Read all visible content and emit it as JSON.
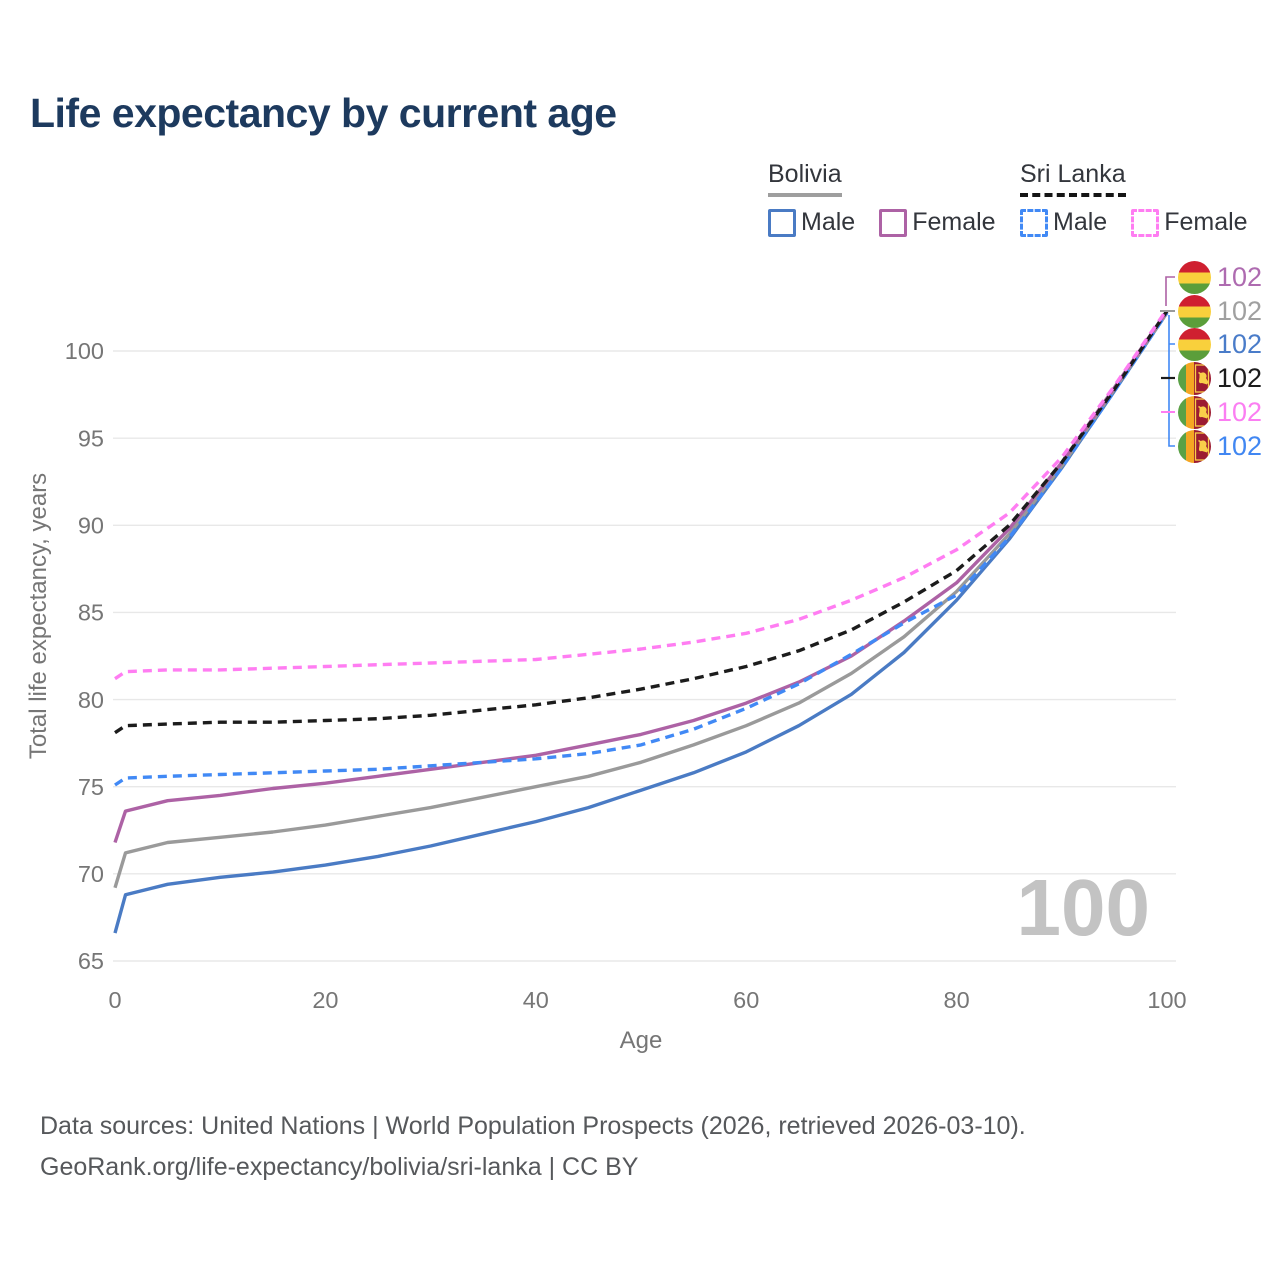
{
  "title": "Life expectancy by current age",
  "legend": {
    "groups": [
      {
        "name": "Bolivia",
        "line_style": "solid",
        "items": [
          {
            "label": "Male",
            "series": "bolivia_male"
          },
          {
            "label": "Female",
            "series": "bolivia_female"
          }
        ]
      },
      {
        "name": "Sri Lanka",
        "line_style": "dashed",
        "items": [
          {
            "label": "Male",
            "series": "srilanka_male"
          },
          {
            "label": "Female",
            "series": "srilanka_female"
          }
        ]
      }
    ]
  },
  "chart_data": {
    "type": "line",
    "title": "Life expectancy by current age",
    "xlabel": "Age",
    "ylabel": "Total life expectancy, years",
    "xlim": [
      0,
      100
    ],
    "ylim": [
      65,
      103
    ],
    "xticks": [
      0,
      20,
      40,
      60,
      80,
      100
    ],
    "yticks": [
      65,
      70,
      75,
      80,
      85,
      90,
      95,
      100
    ],
    "grid": true,
    "legend_position": "top-right",
    "x": [
      0,
      1,
      5,
      10,
      15,
      20,
      25,
      30,
      35,
      40,
      45,
      50,
      55,
      60,
      65,
      70,
      75,
      80,
      85,
      90,
      95,
      100
    ],
    "series": [
      {
        "key": "bolivia_male",
        "name": "Bolivia Male",
        "dash": false,
        "color": "#4a7bc4",
        "values": [
          66.6,
          68.8,
          69.4,
          69.8,
          70.1,
          70.5,
          71.0,
          71.6,
          72.3,
          73.0,
          73.8,
          74.8,
          75.8,
          77.0,
          78.5,
          80.3,
          82.7,
          85.7,
          89.2,
          93.3,
          97.7,
          102.2
        ]
      },
      {
        "key": "bolivia_both",
        "name": "Bolivia Both sexes",
        "dash": false,
        "color": "#9a9a9a",
        "values": [
          69.2,
          71.2,
          71.8,
          72.1,
          72.4,
          72.8,
          73.3,
          73.8,
          74.4,
          75.0,
          75.6,
          76.4,
          77.4,
          78.5,
          79.8,
          81.5,
          83.6,
          86.2,
          89.5,
          93.4,
          97.8,
          102.2
        ]
      },
      {
        "key": "bolivia_female",
        "name": "Bolivia Female",
        "dash": false,
        "color": "#ad62a5",
        "values": [
          71.8,
          73.6,
          74.2,
          74.5,
          74.9,
          75.2,
          75.6,
          76.0,
          76.4,
          76.8,
          77.4,
          78.0,
          78.8,
          79.8,
          81.0,
          82.5,
          84.5,
          86.7,
          89.8,
          93.6,
          97.9,
          102.3
        ]
      },
      {
        "key": "srilanka_male",
        "name": "Sri Lanka Male",
        "dash": true,
        "color": "#4189f5",
        "values": [
          75.1,
          75.5,
          75.6,
          75.7,
          75.8,
          75.9,
          76.0,
          76.2,
          76.4,
          76.6,
          76.9,
          77.4,
          78.3,
          79.5,
          80.9,
          82.6,
          84.4,
          86.0,
          89.3,
          93.3,
          97.7,
          102.2
        ]
      },
      {
        "key": "srilanka_both",
        "name": "Sri Lanka Both sexes",
        "dash": true,
        "color": "#1c1c1c",
        "values": [
          78.1,
          78.5,
          78.6,
          78.7,
          78.7,
          78.8,
          78.9,
          79.1,
          79.4,
          79.7,
          80.1,
          80.6,
          81.2,
          81.9,
          82.8,
          84.0,
          85.6,
          87.4,
          90.0,
          93.6,
          97.8,
          102.3
        ]
      },
      {
        "key": "srilanka_female",
        "name": "Sri Lanka Female",
        "dash": true,
        "color": "#ff7df2",
        "values": [
          81.2,
          81.6,
          81.7,
          81.7,
          81.8,
          81.9,
          82.0,
          82.1,
          82.2,
          82.3,
          82.6,
          82.9,
          83.3,
          83.8,
          84.6,
          85.7,
          87.0,
          88.6,
          90.7,
          93.9,
          98.0,
          102.4
        ]
      }
    ]
  },
  "end_labels": [
    {
      "value": "102",
      "series": "bolivia_female",
      "country": "bolivia",
      "flag": "bolivia-flag-icon"
    },
    {
      "value": "102",
      "series": "bolivia_both",
      "country": "bolivia",
      "flag": "bolivia-flag-icon"
    },
    {
      "value": "102",
      "series": "bolivia_male",
      "country": "bolivia",
      "flag": "bolivia-flag-icon"
    },
    {
      "value": "102",
      "series": "srilanka_both",
      "country": "srilanka",
      "flag": "srilanka-flag-icon"
    },
    {
      "value": "102",
      "series": "srilanka_female",
      "country": "srilanka",
      "flag": "srilanka-flag-icon"
    },
    {
      "value": "102",
      "series": "srilanka_male",
      "country": "srilanka",
      "flag": "srilanka-flag-icon"
    }
  ],
  "watermark": "100",
  "footer": {
    "line1": "Data sources: United Nations | World Population Prospects (2026, retrieved 2026-03-10).",
    "line2": "GeoRank.org/life-expectancy/bolivia/sri-lanka | CC BY"
  },
  "colors": {
    "title": "#1d3a5e",
    "axis_text": "#767676",
    "grid": "#e8e8e8",
    "legend_text": "#33363c",
    "bolivia_underline": "#9e9e9e",
    "srilanka_underline": "#151515",
    "watermark": "#c3c3c3",
    "footer_text": "#56585b"
  }
}
